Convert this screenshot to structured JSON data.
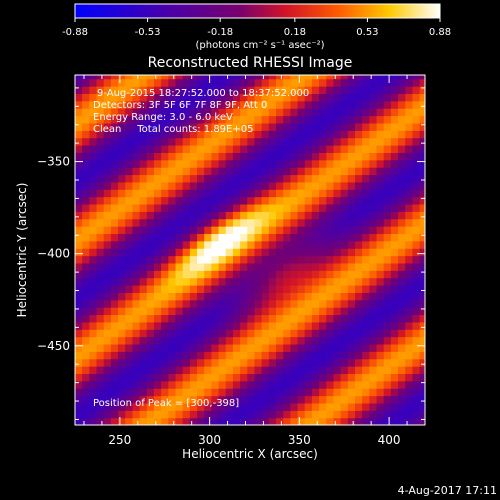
{
  "chart_data": {
    "type": "heatmap",
    "title": "Reconstructed RHESSI Image",
    "xlabel": "Heliocentric X (arcsec)",
    "ylabel": "Heliocentric Y (arcsec)",
    "xlim": [
      225,
      420
    ],
    "ylim": [
      -493,
      -303
    ],
    "x_ticks": [
      250,
      300,
      350,
      400
    ],
    "y_ticks": [
      -350,
      -400,
      -450
    ],
    "colorbar": {
      "label": "(photons cm⁻² s⁻¹ asec⁻²)",
      "range": [
        -0.88,
        0.88
      ],
      "ticks": [
        "-0.88",
        "-0.53",
        "-0.18",
        "0.18",
        "0.53",
        "0.88"
      ]
    },
    "annotations": [
      "9-Aug-2015 18:27:52.000 to 18:37:52.000",
      "Detectors: 3F 5F 6F 7F 8F 9F, Att 0",
      "Energy Range: 3.0 - 6.0 keV",
      "Clean     Total counts: 1.89E+05"
    ],
    "peak_label": "Position of Peak = [300,-398]",
    "peak_position": [
      300,
      -398
    ],
    "stripe_angle_deg": 35,
    "stripe_period_arcsec": 52,
    "blob_centers": [
      [
        305,
        -392
      ],
      [
        342,
        -410
      ]
    ],
    "pixel_size_arcsec": 4
  },
  "footer": {
    "date": "4-Aug-2017 17:11"
  }
}
